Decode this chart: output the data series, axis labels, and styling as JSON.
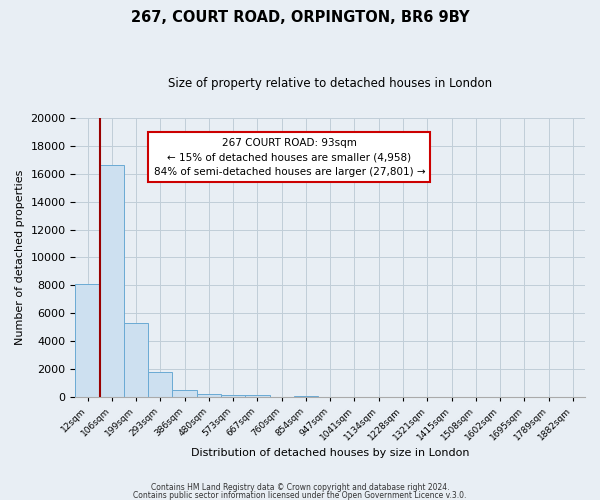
{
  "title": "267, COURT ROAD, ORPINGTON, BR6 9BY",
  "subtitle": "Size of property relative to detached houses in London",
  "xlabel": "Distribution of detached houses by size in London",
  "ylabel": "Number of detached properties",
  "bar_labels": [
    "12sqm",
    "106sqm",
    "199sqm",
    "293sqm",
    "386sqm",
    "480sqm",
    "573sqm",
    "667sqm",
    "760sqm",
    "854sqm",
    "947sqm",
    "1041sqm",
    "1134sqm",
    "1228sqm",
    "1321sqm",
    "1415sqm",
    "1508sqm",
    "1602sqm",
    "1695sqm",
    "1789sqm",
    "1882sqm"
  ],
  "bar_values": [
    8100,
    16600,
    5300,
    1800,
    500,
    200,
    150,
    100,
    0,
    80,
    0,
    0,
    0,
    0,
    0,
    0,
    0,
    0,
    0,
    0,
    0
  ],
  "bar_color": "#cde0f0",
  "bar_edge_color": "#6aaad4",
  "ylim": [
    0,
    20000
  ],
  "yticks": [
    0,
    2000,
    4000,
    6000,
    8000,
    10000,
    12000,
    14000,
    16000,
    18000,
    20000
  ],
  "property_line_color": "#990000",
  "annotation_title": "267 COURT ROAD: 93sqm",
  "annotation_line1": "← 15% of detached houses are smaller (4,958)",
  "annotation_line2": "84% of semi-detached houses are larger (27,801) →",
  "footer1": "Contains HM Land Registry data © Crown copyright and database right 2024.",
  "footer2": "Contains public sector information licensed under the Open Government Licence v.3.0.",
  "bg_color": "#e8eef4",
  "plot_bg_color": "#e8eef4",
  "grid_color": "#c0cdd8"
}
